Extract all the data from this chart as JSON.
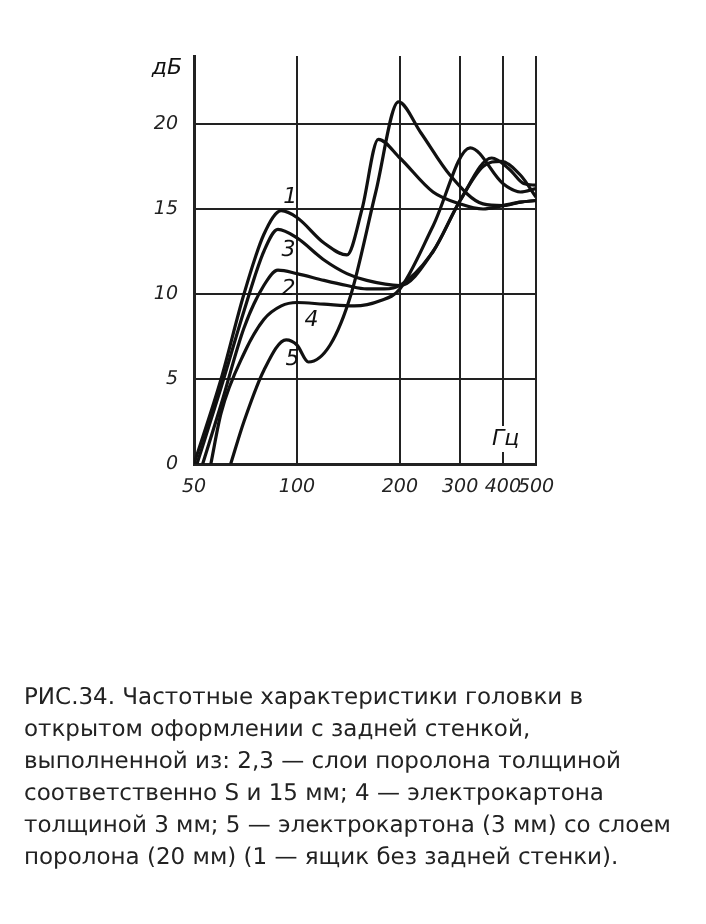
{
  "chart_data": {
    "type": "line",
    "xlabel": "Гц",
    "ylabel": "дБ",
    "log": "x",
    "xlim": [
      50,
      500
    ],
    "xticks": [
      50,
      100,
      200,
      300,
      400,
      500
    ],
    "ylim": [
      0,
      24
    ],
    "yticks": [
      0,
      5,
      10,
      15,
      20
    ],
    "grid": true,
    "legend": false,
    "marker": "none",
    "line_style": "solid",
    "series": [
      {
        "name": "1",
        "color": "#111111",
        "x": [
          50,
          60,
          70,
          80,
          90,
          100,
          120,
          140,
          155,
          173,
          200,
          250,
          300,
          350,
          400,
          450,
          500
        ],
        "values": [
          0,
          5,
          10,
          13.5,
          14.9,
          14.5,
          13,
          12.3,
          15,
          19.1,
          18,
          16,
          15.3,
          15,
          15.2,
          15.4,
          15.5
        ]
      },
      {
        "name": "2",
        "color": "#111111",
        "x": [
          53,
          60,
          70,
          80,
          88,
          100,
          120,
          140,
          160,
          180,
          200,
          250,
          300,
          350,
          395,
          450,
          500
        ],
        "values": [
          0,
          3.5,
          8,
          10.5,
          11.4,
          11.2,
          10.8,
          10.5,
          10.3,
          10.3,
          10.5,
          12.5,
          15.5,
          17.5,
          17.8,
          17,
          15.7
        ]
      },
      {
        "name": "3",
        "color": "#111111",
        "x": [
          51,
          60,
          70,
          80,
          88,
          100,
          120,
          140,
          160,
          200,
          250,
          300,
          371,
          420,
          460,
          500
        ],
        "values": [
          0,
          4.5,
          9,
          12.5,
          13.8,
          13.3,
          12,
          11.2,
          10.8,
          10.5,
          12.5,
          15.5,
          18,
          17.3,
          16.5,
          16.4
        ]
      },
      {
        "name": "4",
        "color": "#111111",
        "x": [
          56,
          60,
          70,
          80,
          90,
          100,
          120,
          147,
          175,
          200,
          250,
          321,
          400,
          450,
          500
        ],
        "values": [
          0,
          3,
          6.5,
          8.5,
          9.3,
          9.5,
          9.4,
          9.3,
          9.6,
          10.3,
          14,
          18.6,
          16.5,
          16,
          16.2
        ]
      },
      {
        "name": "5",
        "color": "#111111",
        "x": [
          64,
          70,
          80,
          93,
          100,
          108,
          125,
          144,
          170,
          198,
          230,
          280,
          350,
          400,
          450,
          500
        ],
        "values": [
          0,
          2.5,
          5.5,
          7.3,
          7,
          6,
          7,
          10,
          16,
          21.3,
          19.5,
          17,
          15.3,
          15.2,
          15.4,
          15.5
        ]
      }
    ],
    "annotations": [
      "РИС.34. Частотные характеристики головки в открытом оформлении с задней стенкой, выполненной из: 2,3 — слои поролона толщиной соответственно S и 15 мм; 4 — электрокартона толщиной 3 мм; 5 — электрокартона (3 мм) со слоем поролона (20 мм) (1 — ящик без задней стенки)."
    ]
  }
}
